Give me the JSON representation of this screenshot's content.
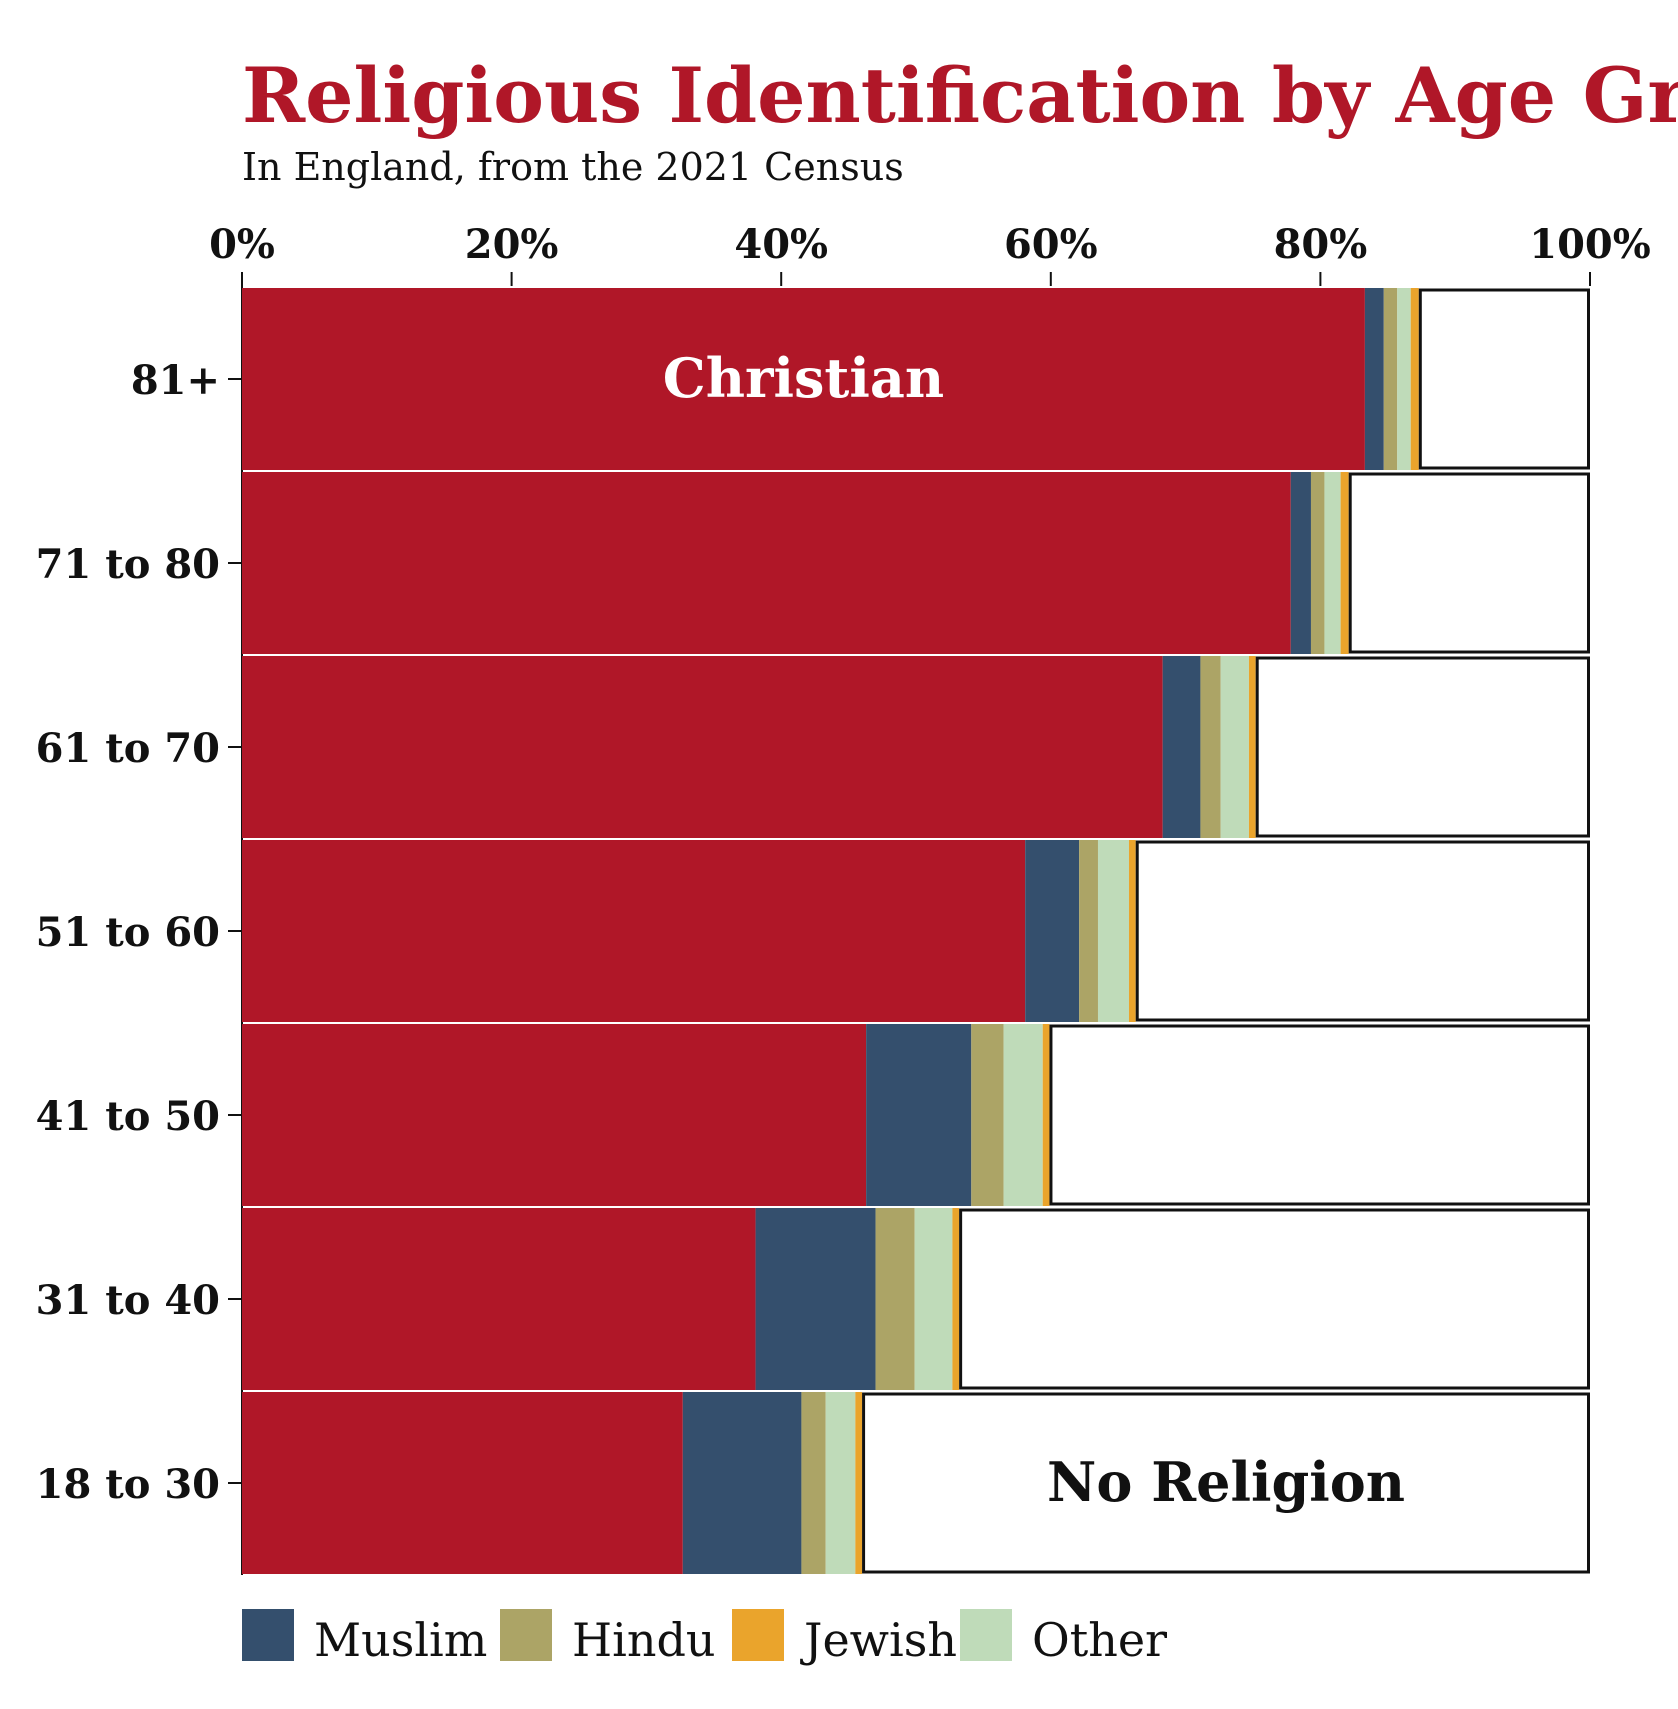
{
  "chart_data": {
    "type": "bar",
    "orientation": "horizontal",
    "stacked": true,
    "title": "Religious Identification by Age Group",
    "subtitle": "In England, from the 2021 Census",
    "x_ticks": [
      "0%",
      "20%",
      "40%",
      "60%",
      "80%",
      "100%"
    ],
    "x_tick_values": [
      0,
      20,
      40,
      60,
      80,
      100
    ],
    "xlim": [
      0,
      100
    ],
    "categories": [
      "81+",
      "71 to 80",
      "61 to 70",
      "51 to 60",
      "41 to 50",
      "31 to 40",
      "18 to 30"
    ],
    "series": [
      {
        "key": "christian",
        "name": "Christian",
        "color": "#b01728",
        "values": [
          83.3,
          77.8,
          68.3,
          58.1,
          46.3,
          38.1,
          32.7
        ]
      },
      {
        "key": "muslim",
        "name": "Muslim",
        "color": "#344f6d",
        "values": [
          1.4,
          1.5,
          2.8,
          4.0,
          7.8,
          8.9,
          8.8
        ]
      },
      {
        "key": "hindu",
        "name": "Hindu",
        "color": "#aca466",
        "values": [
          1.0,
          1.0,
          1.5,
          1.4,
          2.4,
          2.9,
          1.8
        ]
      },
      {
        "key": "other",
        "name": "Other",
        "color": "#bfdbb9",
        "values": [
          1.0,
          1.2,
          2.1,
          2.3,
          2.9,
          2.8,
          2.2
        ]
      },
      {
        "key": "jewish",
        "name": "Jewish",
        "color": "#eaa42c",
        "values": [
          0.6,
          0.6,
          0.5,
          0.5,
          0.5,
          0.5,
          0.5
        ]
      },
      {
        "key": "none",
        "name": "No Religion",
        "color": "#ffffff",
        "values": [
          12.7,
          17.9,
          24.8,
          33.7,
          40.1,
          46.8,
          54.0
        ]
      }
    ],
    "in_bar_labels": {
      "christian": "Christian",
      "none": "No Religion"
    },
    "legend": {
      "placement": "bottom-left",
      "entries": [
        {
          "label": "Muslim",
          "color": "#344f6d"
        },
        {
          "label": "Hindu",
          "color": "#aca466"
        },
        {
          "label": "Jewish",
          "color": "#eaa42c"
        },
        {
          "label": "Other",
          "color": "#bfdbb9"
        }
      ]
    },
    "grid": false,
    "colors": {
      "title": "#b01728",
      "text": "#111111"
    }
  }
}
